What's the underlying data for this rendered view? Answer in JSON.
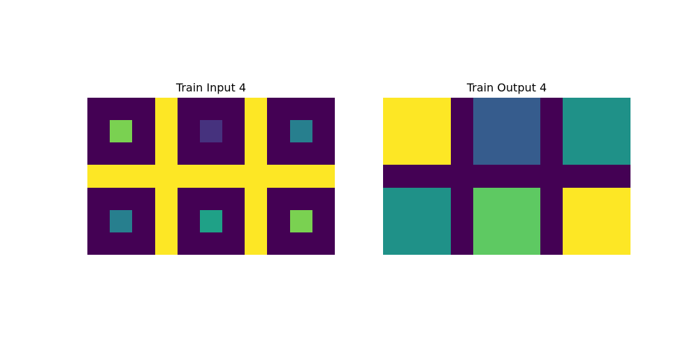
{
  "palette": {
    "0": "#440154",
    "1": "#46327e",
    "2": "#365c8d",
    "3": "#277f8e",
    "4": "#1fa187",
    "5": "#4ac16d",
    "6": "#7ad151",
    "7": "#fde725",
    "8": "#1f9188",
    "9": "#5ec962"
  },
  "panels": [
    {
      "title": "Train Input 4",
      "grid": [
        [
          0,
          0,
          0,
          7,
          0,
          0,
          0,
          7,
          0,
          0,
          0
        ],
        [
          0,
          6,
          0,
          7,
          0,
          1,
          0,
          7,
          0,
          3,
          0
        ],
        [
          0,
          0,
          0,
          7,
          0,
          0,
          0,
          7,
          0,
          0,
          0
        ],
        [
          7,
          7,
          7,
          7,
          7,
          7,
          7,
          7,
          7,
          7,
          7
        ],
        [
          0,
          0,
          0,
          7,
          0,
          0,
          0,
          7,
          0,
          0,
          0
        ],
        [
          0,
          3,
          0,
          7,
          0,
          4,
          0,
          7,
          0,
          6,
          0
        ],
        [
          0,
          0,
          0,
          7,
          0,
          0,
          0,
          7,
          0,
          0,
          0
        ]
      ]
    },
    {
      "title": "Train Output 4",
      "grid": [
        [
          7,
          7,
          7,
          0,
          2,
          2,
          2,
          0,
          8,
          8,
          8
        ],
        [
          7,
          7,
          7,
          0,
          2,
          2,
          2,
          0,
          8,
          8,
          8
        ],
        [
          7,
          7,
          7,
          0,
          2,
          2,
          2,
          0,
          8,
          8,
          8
        ],
        [
          0,
          0,
          0,
          0,
          0,
          0,
          0,
          0,
          0,
          0,
          0
        ],
        [
          8,
          8,
          8,
          0,
          9,
          9,
          9,
          0,
          7,
          7,
          7
        ],
        [
          8,
          8,
          8,
          0,
          9,
          9,
          9,
          0,
          7,
          7,
          7
        ],
        [
          8,
          8,
          8,
          0,
          9,
          9,
          9,
          0,
          7,
          7,
          7
        ]
      ]
    }
  ]
}
